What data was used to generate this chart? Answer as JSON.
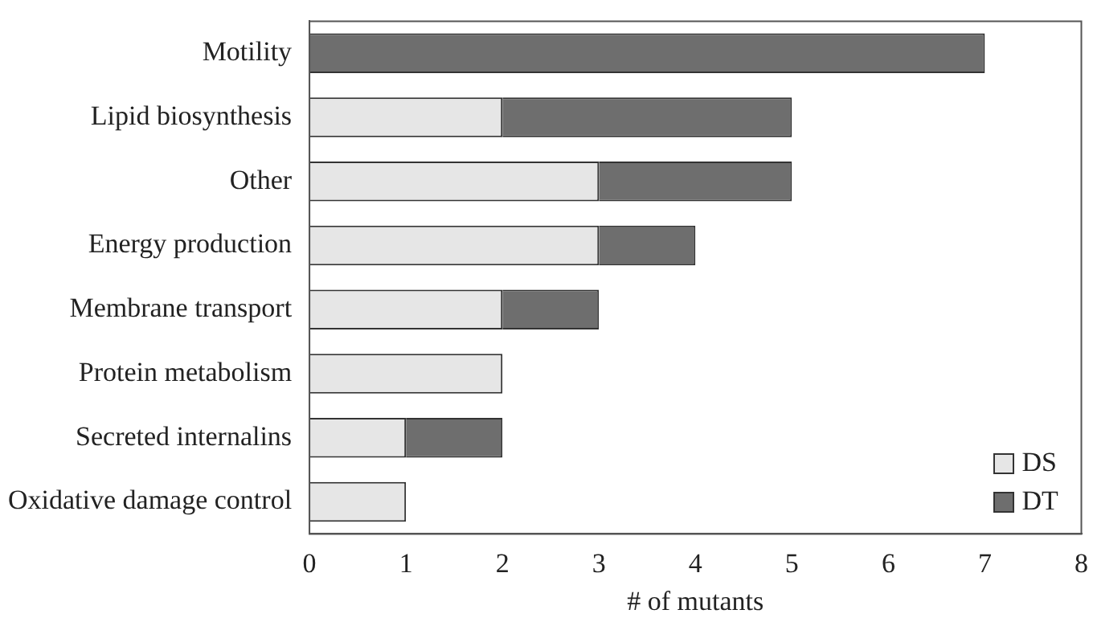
{
  "chart_data": {
    "type": "bar",
    "orientation": "horizontal",
    "stacked": true,
    "categories": [
      "Motility",
      "Lipid biosynthesis",
      "Other",
      "Energy production",
      "Membrane transport",
      "Protein metabolism",
      "Secreted internalins",
      "Oxidative damage control"
    ],
    "series": [
      {
        "name": "DS",
        "color": "#e6e6e6",
        "values": [
          0,
          2,
          3,
          3,
          2,
          2,
          1,
          1
        ]
      },
      {
        "name": "DT",
        "color": "#6e6e6e",
        "values": [
          7,
          3,
          2,
          1,
          1,
          0,
          1,
          0
        ]
      }
    ],
    "xlabel": "# of mutants",
    "xlim": [
      0,
      8
    ],
    "xticks": [
      0,
      1,
      2,
      3,
      4,
      5,
      6,
      7,
      8
    ],
    "grid": false,
    "legend": "bottom right"
  }
}
